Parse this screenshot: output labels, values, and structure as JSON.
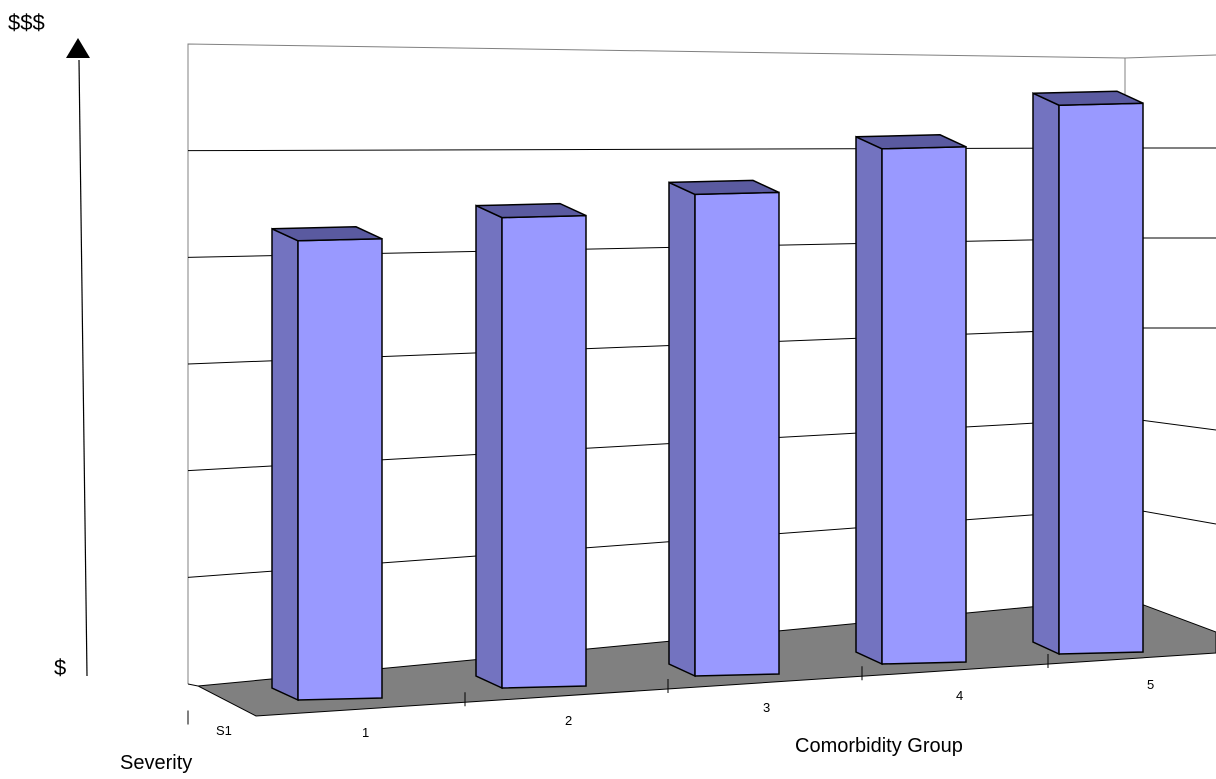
{
  "chart_data": {
    "type": "bar",
    "style": "3d-column",
    "categories": [
      "1",
      "2",
      "3",
      "4",
      "5"
    ],
    "series": [
      {
        "name": "S1",
        "values": [
          4.1,
          4.2,
          4.3,
          4.6,
          4.9
        ]
      }
    ],
    "ylim": [
      0,
      6
    ],
    "grid": true,
    "y_high_label": "$$$",
    "y_low_label": "$",
    "xlabel": "Comorbidity Group",
    "depth_axis_label": "Severity",
    "colors": {
      "bar_front": "#9999ff",
      "bar_side": "#7373c0",
      "floor": "#808080"
    }
  }
}
